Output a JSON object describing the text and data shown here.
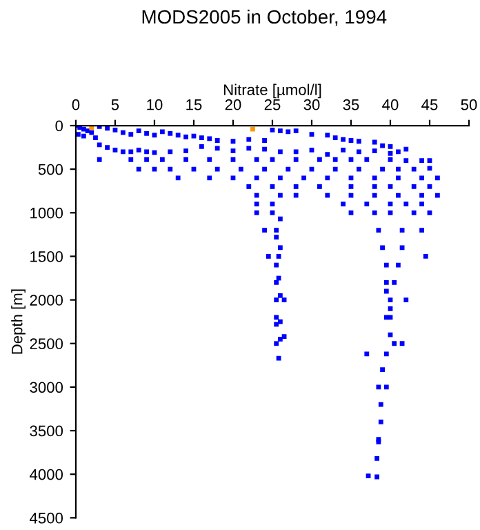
{
  "chart_data": {
    "type": "scatter",
    "title": "MODS2005 in October, 1994",
    "xlabel": "Nitrate [µmol/l]",
    "ylabel": "Depth [m]",
    "xlim": [
      0,
      50
    ],
    "xticks": [
      0,
      5,
      10,
      15,
      20,
      25,
      30,
      35,
      40,
      45,
      50
    ],
    "ylim": [
      4500,
      0
    ],
    "yticks": [
      0,
      500,
      1000,
      1500,
      2000,
      2500,
      3000,
      3500,
      4000,
      4500
    ],
    "grid": false,
    "legend": false,
    "marker": "square",
    "series": [
      {
        "color": "#0000ff",
        "x": [
          0.2,
          0.5,
          1,
          1.5,
          2,
          0.3,
          1,
          2.5,
          3,
          4,
          5,
          6,
          7,
          8,
          9,
          10,
          11,
          12,
          13,
          14,
          15,
          16,
          17,
          18,
          20,
          22,
          24,
          25,
          26,
          27,
          28,
          30,
          32,
          33,
          34,
          35,
          36,
          38,
          39,
          40,
          42,
          3,
          4,
          5,
          6,
          7,
          8,
          9,
          10,
          12,
          14,
          16,
          18,
          20,
          22,
          24,
          26,
          28,
          30,
          32,
          34,
          36,
          38,
          40,
          41,
          3,
          7,
          9,
          11,
          14,
          17,
          20,
          23,
          25,
          28,
          31,
          33,
          35,
          37,
          40,
          42,
          44,
          45,
          8,
          10,
          12,
          15,
          18,
          21,
          24,
          27,
          30,
          33,
          36,
          39,
          41,
          43,
          45,
          13,
          17,
          20,
          23,
          26,
          29,
          32,
          35,
          38,
          41,
          44,
          46,
          22,
          25,
          28,
          31,
          35,
          38,
          40,
          43,
          45,
          23,
          26,
          28,
          32,
          35,
          38,
          41,
          44,
          46,
          23,
          25,
          34,
          37,
          40,
          42,
          44,
          23,
          25,
          35,
          38,
          40,
          43,
          45,
          26,
          24,
          25.5,
          38.5,
          41.5,
          44,
          25.5,
          26,
          39,
          41.5,
          44.5,
          24.5,
          25.8,
          25.5,
          39.5,
          41,
          25.8,
          25.5,
          39.5,
          40.5,
          39.5,
          26,
          25.5,
          26.5,
          40,
          42,
          40,
          25.5,
          26,
          39.5,
          40,
          25.5,
          26.5,
          26,
          25.5,
          40.5,
          41.5,
          40,
          25.8,
          37,
          39.5,
          39,
          38.5,
          39.5,
          38.8,
          38.8,
          38.5,
          38.5,
          38.3,
          37.2,
          38.3
        ],
        "values": [
          0,
          20,
          40,
          60,
          80,
          100,
          120,
          140,
          10,
          30,
          50,
          80,
          100,
          60,
          90,
          110,
          70,
          90,
          110,
          130,
          120,
          140,
          150,
          170,
          180,
          160,
          170,
          50,
          60,
          70,
          60,
          100,
          110,
          140,
          160,
          170,
          180,
          190,
          230,
          240,
          270,
          220,
          250,
          280,
          300,
          300,
          280,
          300,
          310,
          300,
          290,
          240,
          260,
          290,
          260,
          270,
          300,
          300,
          280,
          330,
          280,
          300,
          290,
          320,
          300,
          390,
          390,
          390,
          390,
          390,
          390,
          390,
          390,
          390,
          390,
          390,
          390,
          390,
          390,
          390,
          400,
          400,
          400,
          500,
          500,
          500,
          500,
          500,
          500,
          500,
          500,
          500,
          500,
          500,
          500,
          500,
          500,
          490,
          600,
          600,
          600,
          600,
          600,
          600,
          600,
          600,
          600,
          600,
          600,
          600,
          700,
          700,
          700,
          700,
          700,
          700,
          700,
          700,
          700,
          800,
          800,
          800,
          800,
          800,
          800,
          800,
          800,
          800,
          900,
          900,
          900,
          900,
          900,
          900,
          900,
          1000,
          1000,
          1000,
          1000,
          1000,
          1000,
          1000,
          1070,
          1200,
          1200,
          1200,
          1200,
          1200,
          1280,
          1400,
          1400,
          1400,
          1500,
          1500,
          1500,
          1600,
          1600,
          1600,
          1750,
          1800,
          1800,
          1800,
          1900,
          1950,
          2000,
          2000,
          2000,
          2000,
          2100,
          2200,
          2250,
          2200,
          2200,
          2280,
          2420,
          2450,
          2500,
          2500,
          2500,
          2400,
          2670,
          2620,
          2620,
          2800,
          3000,
          3000,
          3200,
          3400,
          3600,
          3630,
          3820,
          4020,
          4030
        ]
      },
      {
        "color": "#ff9900",
        "x": [
          2,
          22.5
        ],
        "values": [
          25,
          40
        ]
      }
    ]
  }
}
